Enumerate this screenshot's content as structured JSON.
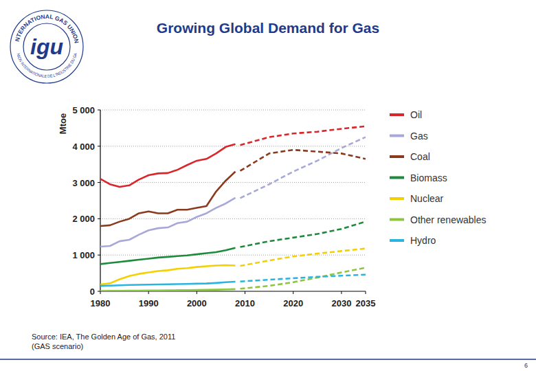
{
  "page": {
    "logo": {
      "outer_text": "INTERNATIONAL GAS UNION",
      "inner_text": "UNION INTERNATIONALE DE L'INDUSTRIE DU GAZ",
      "letters": "igu"
    },
    "page_number": "6"
  },
  "chart_data": {
    "type": "line",
    "title": "Growing Global Demand for Gas",
    "y_label": "Mtoe",
    "annotations": [
      "Source: IEA, The Golden Age of Gas, 2011",
      "(GAS scenario)"
    ],
    "x": [
      1980,
      1982,
      1984,
      1986,
      1988,
      1990,
      1992,
      1994,
      1996,
      1998,
      2000,
      2002,
      2004,
      2006,
      2008,
      2009,
      2015,
      2020,
      2025,
      2030,
      2035
    ],
    "xlim": [
      1980,
      2035
    ],
    "xticks": [
      1980,
      1990,
      2000,
      2010,
      2020,
      2030,
      2035
    ],
    "ylim": [
      0,
      5000
    ],
    "yticks": [
      0,
      {
        "value": 1000,
        "label": "1 000"
      },
      {
        "value": 2000,
        "label": "2 000"
      },
      {
        "value": 3000,
        "label": "3 000"
      },
      {
        "value": 4000,
        "label": "4 000"
      },
      {
        "value": 5000,
        "label": "5 000"
      }
    ],
    "grid": true,
    "legend": "right",
    "series": [
      {
        "name": "Oil",
        "color": "#d9262b",
        "line_style": "solid",
        "values": [
          3100,
          2950,
          2880,
          2920,
          3080,
          3200,
          3250,
          3260,
          3350,
          3480,
          3600,
          3650,
          3800,
          3980,
          4060,
          null,
          null,
          null,
          null,
          null,
          null
        ]
      },
      {
        "name": "Oil",
        "color": "#d9262b",
        "line_style": "dashed",
        "values": [
          null,
          null,
          null,
          null,
          null,
          null,
          null,
          null,
          null,
          null,
          null,
          null,
          null,
          null,
          null,
          4030,
          4250,
          4350,
          4400,
          4480,
          4550
        ]
      },
      {
        "name": "Gas",
        "color": "#a8a8d8",
        "line_style": "solid",
        "values": [
          1230,
          1250,
          1380,
          1420,
          1560,
          1680,
          1740,
          1760,
          1880,
          1920,
          2050,
          2150,
          2300,
          2420,
          2580,
          null,
          null,
          null,
          null,
          null,
          null
        ]
      },
      {
        "name": "Gas",
        "color": "#a8a8d8",
        "line_style": "dashed",
        "values": [
          null,
          null,
          null,
          null,
          null,
          null,
          null,
          null,
          null,
          null,
          null,
          null,
          null,
          null,
          null,
          2570,
          2950,
          3300,
          3600,
          3950,
          4250
        ]
      },
      {
        "name": "Coal",
        "color": "#8b3a1e",
        "line_style": "solid",
        "values": [
          1800,
          1820,
          1920,
          2000,
          2150,
          2200,
          2150,
          2150,
          2250,
          2250,
          2300,
          2350,
          2750,
          3050,
          3300,
          null,
          null,
          null,
          null,
          null,
          null
        ]
      },
      {
        "name": "Coal",
        "color": "#8b3a1e",
        "line_style": "dashed",
        "values": [
          null,
          null,
          null,
          null,
          null,
          null,
          null,
          null,
          null,
          null,
          null,
          null,
          null,
          null,
          null,
          3320,
          3800,
          3900,
          3850,
          3800,
          3650
        ]
      },
      {
        "name": "Biomass",
        "color": "#1e8a3c",
        "line_style": "solid",
        "values": [
          750,
          780,
          810,
          840,
          870,
          900,
          930,
          950,
          970,
          990,
          1020,
          1050,
          1080,
          1130,
          1200,
          null,
          null,
          null,
          null,
          null,
          null
        ]
      },
      {
        "name": "Biomass",
        "color": "#1e8a3c",
        "line_style": "dashed",
        "values": [
          null,
          null,
          null,
          null,
          null,
          null,
          null,
          null,
          null,
          null,
          null,
          null,
          null,
          null,
          null,
          1220,
          1380,
          1480,
          1580,
          1720,
          1920
        ]
      },
      {
        "name": "Nuclear",
        "color": "#f5d000",
        "line_style": "solid",
        "values": [
          190,
          220,
          330,
          420,
          480,
          520,
          560,
          580,
          620,
          640,
          670,
          690,
          710,
          720,
          710,
          null,
          null,
          null,
          null,
          null,
          null
        ]
      },
      {
        "name": "Nuclear",
        "color": "#f5d000",
        "line_style": "dashed",
        "values": [
          null,
          null,
          null,
          null,
          null,
          null,
          null,
          null,
          null,
          null,
          null,
          null,
          null,
          null,
          null,
          700,
          850,
          960,
          1040,
          1110,
          1180
        ]
      },
      {
        "name": "Other renewables",
        "color": "#8cc63f",
        "line_style": "solid",
        "values": [
          10,
          12,
          15,
          18,
          20,
          22,
          25,
          28,
          30,
          33,
          37,
          40,
          45,
          52,
          60,
          null,
          null,
          null,
          null,
          null,
          null
        ]
      },
      {
        "name": "Other renewables",
        "color": "#8cc63f",
        "line_style": "dashed",
        "values": [
          null,
          null,
          null,
          null,
          null,
          null,
          null,
          null,
          null,
          null,
          null,
          null,
          null,
          null,
          null,
          70,
          150,
          250,
          380,
          520,
          650
        ]
      },
      {
        "name": "Hydro",
        "color": "#2ab4e0",
        "line_style": "solid",
        "values": [
          150,
          155,
          165,
          175,
          180,
          185,
          190,
          195,
          200,
          205,
          210,
          215,
          230,
          250,
          265,
          null,
          null,
          null,
          null,
          null,
          null
        ]
      },
      {
        "name": "Hydro",
        "color": "#2ab4e0",
        "line_style": "dashed",
        "values": [
          null,
          null,
          null,
          null,
          null,
          null,
          null,
          null,
          null,
          null,
          null,
          null,
          null,
          null,
          null,
          270,
          320,
          360,
          400,
          430,
          460
        ]
      }
    ]
  }
}
